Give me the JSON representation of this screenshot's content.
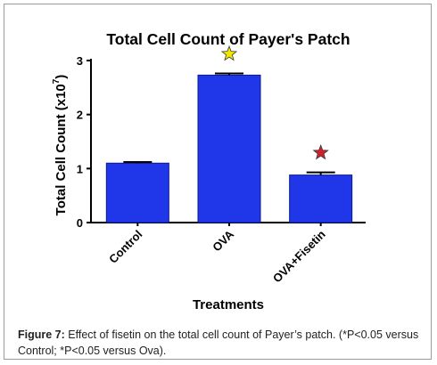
{
  "chart_data": {
    "type": "bar",
    "title": "Total Cell Count of Payer's Patch",
    "xlabel": "Treatments",
    "ylabel": "Total Cell  Count (x10",
    "ylabel_exp": "7",
    "ylabel_close": ")",
    "categories": [
      "Control",
      "OVA",
      "OVA+Fisetin"
    ],
    "values": [
      1.1,
      2.73,
      0.88
    ],
    "errors": [
      0.02,
      0.03,
      0.05
    ],
    "ylim": [
      0,
      3
    ],
    "yticks": [
      "0",
      "1",
      "2",
      "3"
    ],
    "significance_markers": [
      {
        "category": "OVA",
        "symbol": "star",
        "color": "#f2e600"
      },
      {
        "category": "OVA+Fisetin",
        "symbol": "star",
        "color": "#d0202e"
      }
    ],
    "bar_color": "#1f37e8",
    "grid": false,
    "legend": "none"
  },
  "caption": {
    "label": "Figure 7:",
    "text": " Effect of fisetin on the total cell count of Payer’s patch. (*P<0.05 versus Control; *P<0.05 versus Ova)."
  }
}
